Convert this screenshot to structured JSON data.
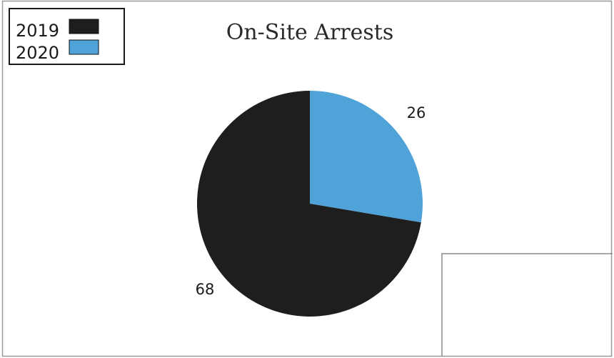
{
  "chart_data": {
    "type": "pie",
    "title": "On-Site Arrests",
    "categories": [
      "2019",
      "2020"
    ],
    "values": [
      68,
      26
    ],
    "colors": [
      "#1e1e1e",
      "#4fa3d8"
    ],
    "data_labels": [
      "68",
      "26"
    ],
    "legend_placement": "top-left",
    "grid": false
  }
}
